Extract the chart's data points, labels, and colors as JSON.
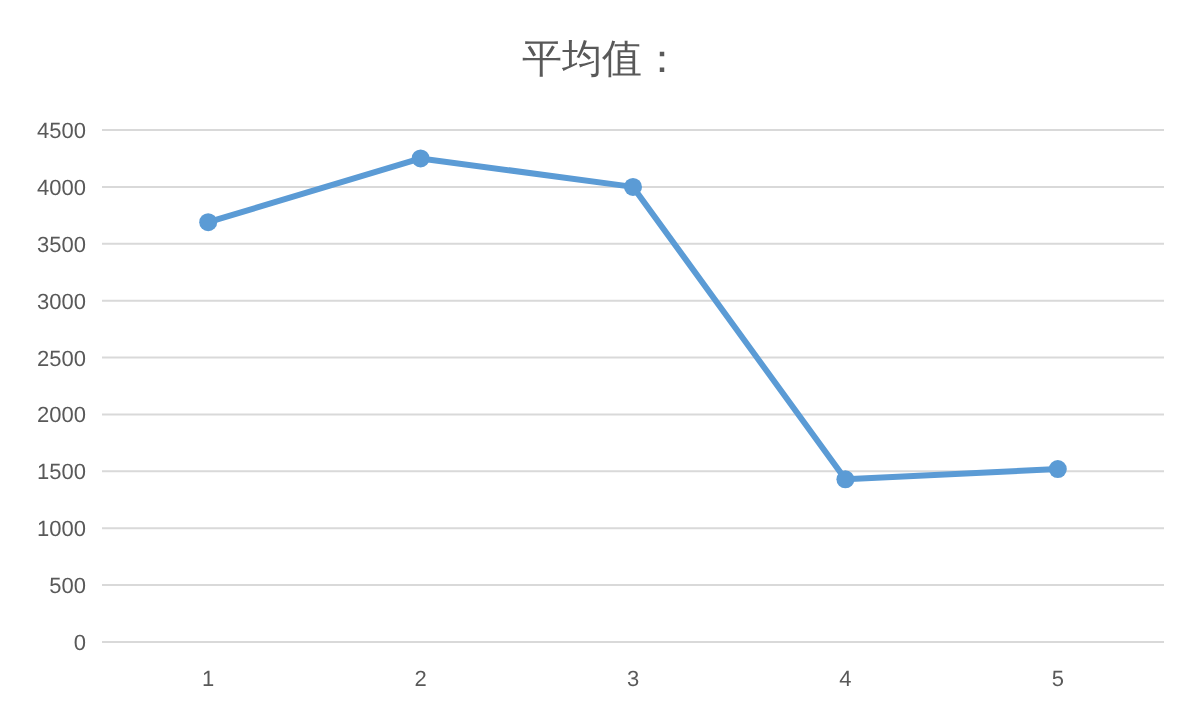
{
  "chart_data": {
    "type": "line",
    "title": "平均值：",
    "categories": [
      "1",
      "2",
      "3",
      "4",
      "5"
    ],
    "series": [
      {
        "color": "#5b9bd5",
        "values": [
          3690,
          4250,
          4000,
          1430,
          1520
        ]
      }
    ],
    "ylim": [
      0,
      4500
    ],
    "yticks": [
      0,
      500,
      1000,
      1500,
      2000,
      2500,
      3000,
      3500,
      4000,
      4500
    ],
    "grid": "y",
    "marker": "circle",
    "line_style": "solid"
  }
}
